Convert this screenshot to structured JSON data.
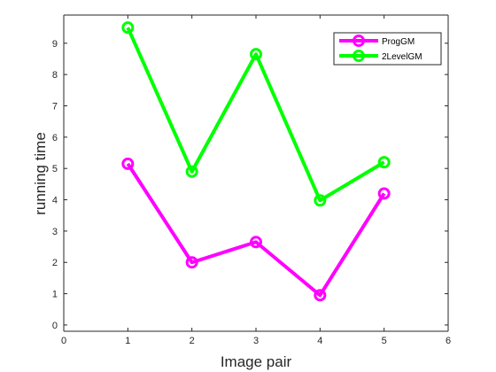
{
  "chart_data": {
    "type": "line",
    "title": "",
    "xlabel": "Image pair",
    "ylabel": "running time",
    "xlim": [
      0,
      6
    ],
    "ylim": [
      -0.2,
      9.9
    ],
    "xticks": [
      0,
      1,
      2,
      3,
      4,
      5,
      6
    ],
    "yticks": [
      0,
      1,
      2,
      3,
      4,
      5,
      6,
      7,
      8,
      9
    ],
    "grid": false,
    "legend_position": "top-right",
    "x": [
      1,
      2,
      3,
      4,
      5
    ],
    "series": [
      {
        "name": "ProgGM",
        "color": "#ff00ff",
        "marker": "circle",
        "values": [
          5.15,
          2.0,
          2.65,
          0.95,
          4.2
        ]
      },
      {
        "name": "2LevelGM",
        "color": "#00ff00",
        "marker": "circle",
        "values": [
          9.5,
          4.9,
          8.65,
          3.98,
          5.2
        ]
      }
    ]
  }
}
